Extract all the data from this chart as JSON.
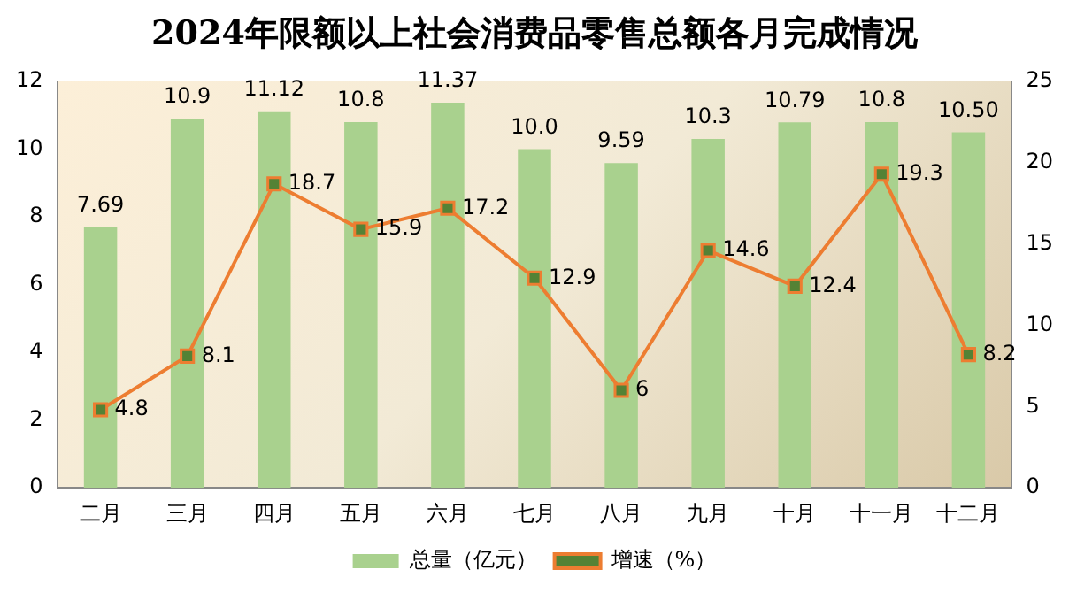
{
  "chart_data": {
    "type": "bar",
    "title": "2024年限额以上社会消费品零售总额各月完成情况",
    "categories": [
      "二月",
      "三月",
      "四月",
      "五月",
      "六月",
      "七月",
      "八月",
      "九月",
      "十月",
      "十一月",
      "十二月"
    ],
    "series": [
      {
        "name": "总量（亿元）",
        "color": "#a9d18e",
        "values": [
          7.69,
          10.9,
          11.12,
          10.8,
          11.37,
          10.0,
          9.59,
          10.3,
          10.79,
          10.8,
          10.5
        ],
        "value_labels": [
          "7.69",
          "10.9",
          "11.12",
          "10.8",
          "11.37",
          "10.0",
          "9.59",
          "10.3",
          "10.79",
          "10.8",
          "10.50"
        ]
      },
      {
        "name": "增速（%）",
        "type": "line",
        "axis": "y2",
        "color": "#ed7d31",
        "marker": "square",
        "values": [
          4.8,
          8.1,
          18.7,
          15.9,
          17.2,
          12.9,
          6,
          14.6,
          12.4,
          19.3,
          8.2
        ],
        "value_labels": [
          "4.8",
          "8.1",
          "18.7",
          "15.9",
          "17.2",
          "12.9",
          "6",
          "14.6",
          "12.4",
          "19.3",
          "8.2"
        ]
      }
    ],
    "ylim": [
      0,
      12
    ],
    "yticks": [
      0,
      2,
      4,
      6,
      8,
      10,
      12
    ],
    "y2lim": [
      0,
      25
    ],
    "y2ticks": [
      0,
      5,
      10,
      15,
      20,
      25
    ],
    "grid": false,
    "legend": "bottom"
  }
}
